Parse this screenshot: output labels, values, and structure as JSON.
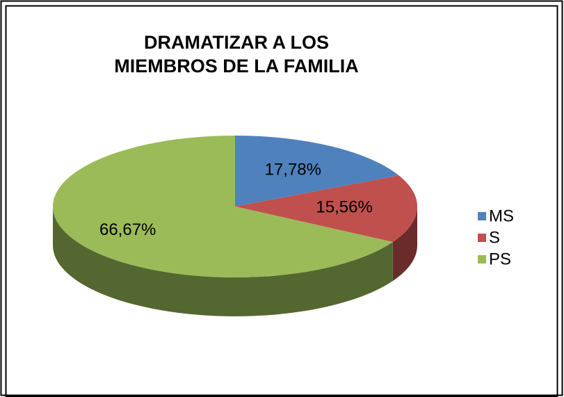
{
  "chart_data": {
    "type": "pie",
    "title": "DRAMATIZAR A LOS MIEMBROS DE LA FAMILIA",
    "categories": [
      "MS",
      "S",
      "PS"
    ],
    "values": [
      17.78,
      15.56,
      66.67
    ],
    "value_labels": [
      "17,78%",
      "15,56%",
      "66,67%"
    ],
    "colors": [
      "#4f81bd",
      "#c0504d",
      "#9bbb59"
    ],
    "legend": "right"
  }
}
